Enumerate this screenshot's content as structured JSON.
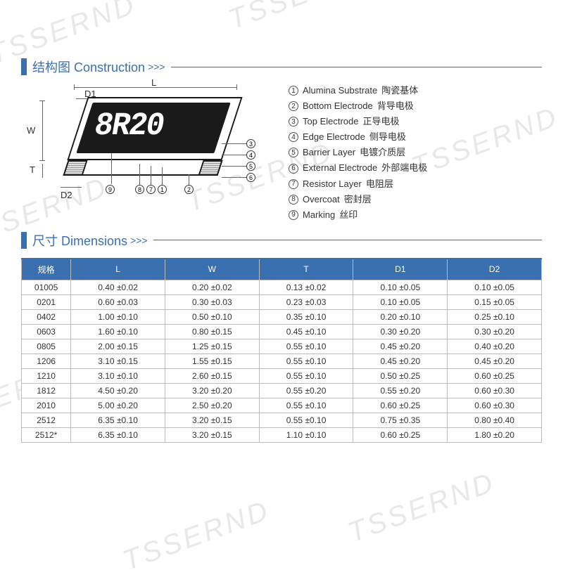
{
  "watermark_text": "TSSERND",
  "sections": {
    "construction": {
      "zh": "结构图",
      "en": "Construction"
    },
    "dimensions": {
      "zh": "尺寸",
      "en": "Dimensions"
    }
  },
  "diagram": {
    "marking_text": "8R20",
    "dim_labels": {
      "L": "L",
      "W": "W",
      "T": "T",
      "D1": "D1",
      "D2": "D2"
    },
    "callouts": [
      "9",
      "8",
      "7",
      "1",
      "2",
      "3",
      "4",
      "5",
      "6"
    ]
  },
  "legend": [
    {
      "n": "1",
      "en": "Alumina Substrate",
      "zh": "陶瓷基体"
    },
    {
      "n": "2",
      "en": "Bottom Electrode",
      "zh": "背导电极"
    },
    {
      "n": "3",
      "en": "Top Electrode",
      "zh": "正导电极"
    },
    {
      "n": "4",
      "en": "Edge Electrode",
      "zh": "侧导电极"
    },
    {
      "n": "5",
      "en": "Barrier Layer",
      "zh": "电镀介质层"
    },
    {
      "n": "6",
      "en": "External Electrode",
      "zh": "外部端电极"
    },
    {
      "n": "7",
      "en": "Resistor Layer",
      "zh": "电阻层"
    },
    {
      "n": "8",
      "en": "Overcoat",
      "zh": "密封层"
    },
    {
      "n": "9",
      "en": "Marking",
      "zh": "丝印"
    }
  ],
  "table": {
    "columns": [
      "规格",
      "L",
      "W",
      "T",
      "D1",
      "D2"
    ],
    "col_widths_pct": [
      9.5,
      18.1,
      18.1,
      18.1,
      18.1,
      18.1
    ],
    "header_bg": "#3a6fb0",
    "header_color": "#ffffff",
    "border_color": "#bbbbbb",
    "rows": [
      [
        "01005",
        "0.40 ±0.02",
        "0.20 ±0.02",
        "0.13 ±0.02",
        "0.10 ±0.05",
        "0.10 ±0.05"
      ],
      [
        "0201",
        "0.60 ±0.03",
        "0.30 ±0.03",
        "0.23 ±0.03",
        "0.10 ±0.05",
        "0.15 ±0.05"
      ],
      [
        "0402",
        "1.00 ±0.10",
        "0.50 ±0.10",
        "0.35 ±0.10",
        "0.20 ±0.10",
        "0.25 ±0.10"
      ],
      [
        "0603",
        "1.60 ±0.10",
        "0.80 ±0.15",
        "0.45 ±0.10",
        "0.30 ±0.20",
        "0.30 ±0.20"
      ],
      [
        "0805",
        "2.00 ±0.15",
        "1.25 ±0.15",
        "0.55 ±0.10",
        "0.45 ±0.20",
        "0.40 ±0.20"
      ],
      [
        "1206",
        "3.10 ±0.15",
        "1.55 ±0.15",
        "0.55 ±0.10",
        "0.45 ±0.20",
        "0.45 ±0.20"
      ],
      [
        "1210",
        "3.10 ±0.10",
        "2.60 ±0.15",
        "0.55 ±0.10",
        "0.50 ±0.25",
        "0.60 ±0.25"
      ],
      [
        "1812",
        "4.50 ±0.20",
        "3.20 ±0.20",
        "0.55 ±0.20",
        "0.55 ±0.20",
        "0.60 ±0.30"
      ],
      [
        "2010",
        "5.00 ±0.20",
        "2.50 ±0.20",
        "0.55 ±0.10",
        "0.60 ±0.25",
        "0.60 ±0.30"
      ],
      [
        "2512",
        "6.35 ±0.10",
        "3.20 ±0.15",
        "0.55 ±0.10",
        "0.75 ±0.35",
        "0.80 ±0.40"
      ],
      [
        "2512*",
        "6.35 ±0.10",
        "3.20 ±0.15",
        "1.10 ±0.10",
        "0.60 ±0.25",
        "1.80 ±0.20"
      ]
    ]
  },
  "colors": {
    "brand_blue": "#3a6fb0",
    "text": "#333333",
    "watermark": "#e8e8e8"
  }
}
